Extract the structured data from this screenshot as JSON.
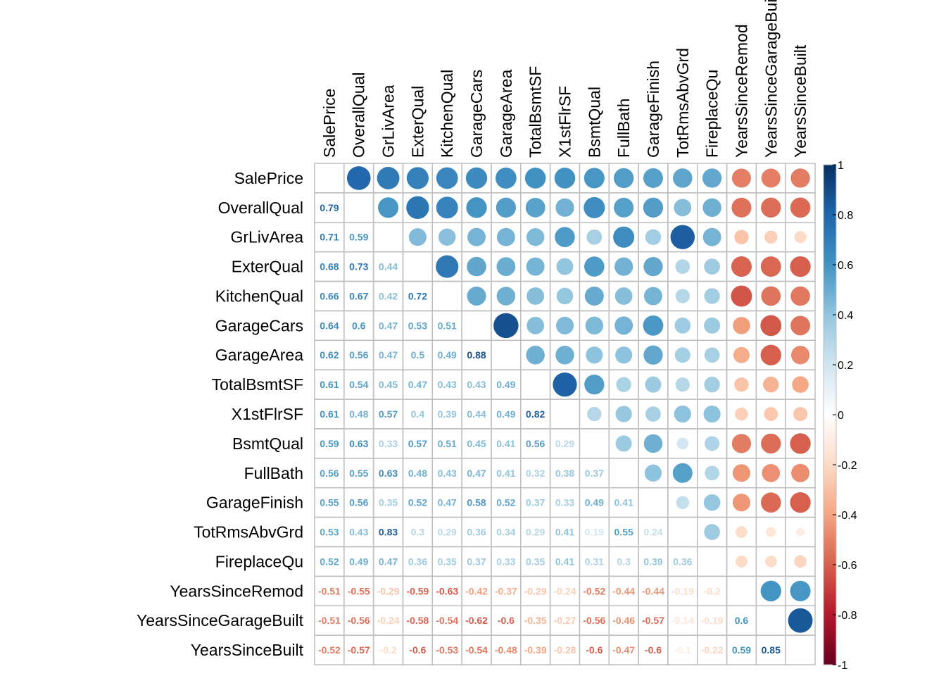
{
  "chart_data": {
    "type": "heatmap",
    "title": "",
    "variables": [
      "SalePrice",
      "OverallQual",
      "GrLivArea",
      "ExterQual",
      "KitchenQual",
      "GarageCars",
      "GarageArea",
      "TotalBsmtSF",
      "X1stFlrSF",
      "BsmtQual",
      "FullBath",
      "GarageFinish",
      "TotRmsAbvGrd",
      "FireplaceQu",
      "YearsSinceRemod",
      "YearsSinceGarageBuilt",
      "YearsSinceBuilt"
    ],
    "lower_triangle_labels": [
      [],
      [
        "0.79"
      ],
      [
        "0.71",
        "0.59"
      ],
      [
        "0.68",
        "0.73",
        "0.44"
      ],
      [
        "0.66",
        "0.67",
        "0.42",
        "0.72"
      ],
      [
        "0.64",
        "0.6",
        "0.47",
        "0.53",
        "0.51"
      ],
      [
        "0.62",
        "0.56",
        "0.47",
        "0.5",
        "0.49",
        "0.88"
      ],
      [
        "0.61",
        "0.54",
        "0.45",
        "0.47",
        "0.43",
        "0.43",
        "0.49"
      ],
      [
        "0.61",
        "0.48",
        "0.57",
        "0.4",
        "0.39",
        "0.44",
        "0.49",
        "0.82"
      ],
      [
        "0.59",
        "0.63",
        "0.33",
        "0.57",
        "0.51",
        "0.45",
        "0.41",
        "0.56",
        "0.29"
      ],
      [
        "0.56",
        "0.55",
        "0.63",
        "0.48",
        "0.43",
        "0.47",
        "0.41",
        "0.32",
        "0.38",
        "0.37"
      ],
      [
        "0.55",
        "0.56",
        "0.35",
        "0.52",
        "0.47",
        "0.58",
        "0.52",
        "0.37",
        "0.33",
        "0.49",
        "0.41"
      ],
      [
        "0.53",
        "0.43",
        "0.83",
        "0.3",
        "0.29",
        "0.36",
        "0.34",
        "0.29",
        "0.41",
        "0.19",
        "0.55",
        "0.24"
      ],
      [
        "0.52",
        "0.49",
        "0.47",
        "0.36",
        "0.35",
        "0.37",
        "0.33",
        "0.35",
        "0.41",
        "0.31",
        "0.3",
        "0.39",
        "0.36"
      ],
      [
        "-0.51",
        "-0.55",
        "-0.29",
        "-0.59",
        "-0.63",
        "-0.42",
        "-0.37",
        "-0.29",
        "-0.24",
        "-0.52",
        "-0.44",
        "-0.44",
        "-0.19",
        "-0.2"
      ],
      [
        "-0.51",
        "-0.56",
        "-0.24",
        "-0.58",
        "-0.54",
        "-0.62",
        "-0.6",
        "-0.35",
        "-0.27",
        "-0.56",
        "-0.46",
        "-0.57",
        "-0.14",
        "-0.19",
        "0.6"
      ],
      [
        "-0.52",
        "-0.57",
        "-0.2",
        "-0.6",
        "-0.53",
        "-0.54",
        "-0.48",
        "-0.39",
        "-0.28",
        "-0.6",
        "-0.47",
        "-0.6",
        "-0.1",
        "-0.22",
        "0.59",
        "0.85"
      ]
    ],
    "colorbar": {
      "ticks": [
        "1",
        "0.8",
        "0.6",
        "0.4",
        "0.2",
        "0",
        "-0.2",
        "-0.4",
        "-0.6",
        "-0.8",
        "-1"
      ],
      "range": [
        -1,
        1
      ]
    },
    "colors": {
      "grid": "#bfbfbf",
      "palette": [
        "#67001F",
        "#B2182B",
        "#D6604D",
        "#F4A582",
        "#FDDBC7",
        "#FFFFFF",
        "#D1E5F0",
        "#92C5DE",
        "#4393C3",
        "#2166AC",
        "#053061"
      ]
    },
    "layout_note_upper": "upper triangle shows circles sized and colored by correlation; lower triangle shows numbers"
  }
}
